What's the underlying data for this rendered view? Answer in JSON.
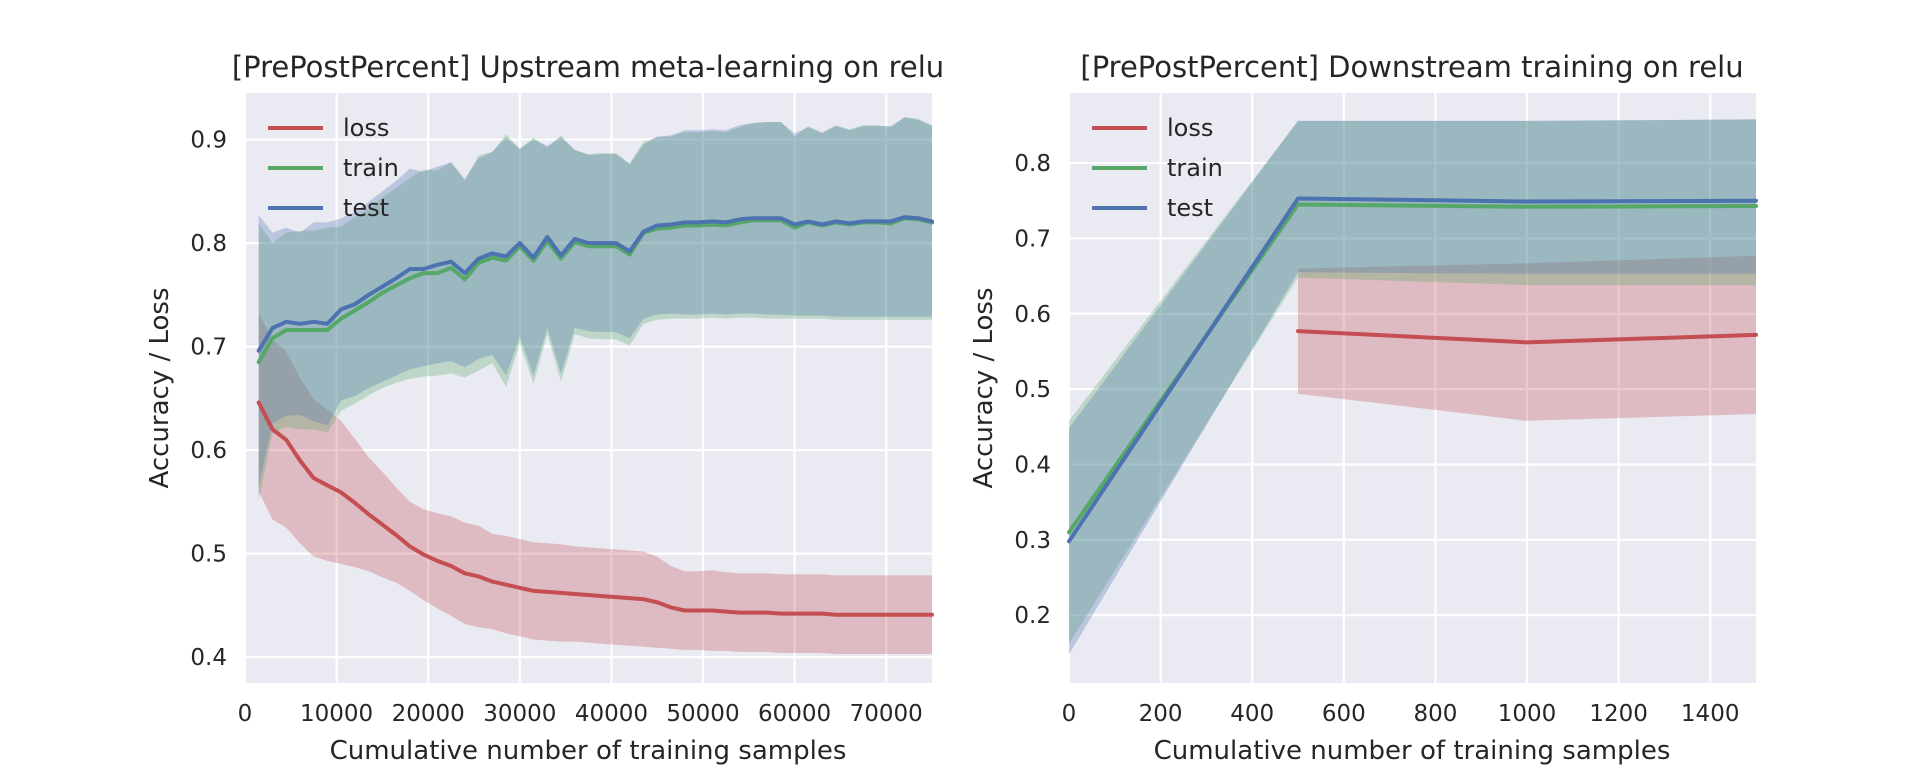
{
  "chart_data": [
    {
      "type": "line",
      "title": "[PrePostPercent] Upstream meta-learning on relu",
      "xlabel": "Cumulative number of training samples",
      "ylabel": "Accuracy / Loss",
      "xlim": [
        0,
        75000
      ],
      "ylim": [
        0.375,
        0.945
      ],
      "xticks": [
        0,
        10000,
        20000,
        30000,
        40000,
        50000,
        60000,
        70000
      ],
      "yticks": [
        0.4,
        0.5,
        0.6,
        0.7,
        0.8,
        0.9
      ],
      "grid": true,
      "legend": "top-left",
      "x": [
        1500,
        3000,
        4500,
        6000,
        7500,
        9000,
        10500,
        12000,
        13500,
        15000,
        16500,
        18000,
        19500,
        21000,
        22500,
        24000,
        25500,
        27000,
        28500,
        30000,
        31500,
        33000,
        34500,
        36000,
        37500,
        39000,
        40500,
        42000,
        43500,
        45000,
        46500,
        48000,
        49500,
        51000,
        52500,
        54000,
        55500,
        57000,
        58500,
        60000,
        61500,
        63000,
        64500,
        66000,
        67500,
        69000,
        70500,
        72000,
        73500,
        75000
      ],
      "series": [
        {
          "name": "loss",
          "color": "#c44e52",
          "values": [
            0.646,
            0.62,
            0.61,
            0.59,
            0.573,
            0.566,
            0.559,
            0.549,
            0.538,
            0.528,
            0.518,
            0.507,
            0.499,
            0.493,
            0.488,
            0.481,
            0.478,
            0.473,
            0.47,
            0.467,
            0.464,
            0.463,
            0.462,
            0.461,
            0.46,
            0.459,
            0.458,
            0.457,
            0.456,
            0.453,
            0.448,
            0.445,
            0.445,
            0.445,
            0.444,
            0.443,
            0.443,
            0.443,
            0.442,
            0.442,
            0.442,
            0.442,
            0.441,
            0.441,
            0.441,
            0.441,
            0.441,
            0.441,
            0.441,
            0.441
          ],
          "lower": [
            0.56,
            0.533,
            0.525,
            0.51,
            0.497,
            0.493,
            0.49,
            0.487,
            0.483,
            0.477,
            0.472,
            0.464,
            0.455,
            0.447,
            0.44,
            0.432,
            0.429,
            0.427,
            0.423,
            0.42,
            0.417,
            0.416,
            0.415,
            0.415,
            0.414,
            0.413,
            0.412,
            0.411,
            0.41,
            0.409,
            0.408,
            0.407,
            0.407,
            0.406,
            0.406,
            0.405,
            0.405,
            0.405,
            0.404,
            0.404,
            0.404,
            0.404,
            0.403,
            0.403,
            0.403,
            0.403,
            0.403,
            0.403,
            0.403,
            0.403
          ],
          "upper": [
            0.732,
            0.707,
            0.695,
            0.67,
            0.649,
            0.639,
            0.628,
            0.611,
            0.593,
            0.579,
            0.564,
            0.55,
            0.543,
            0.539,
            0.536,
            0.53,
            0.527,
            0.519,
            0.517,
            0.514,
            0.511,
            0.51,
            0.509,
            0.507,
            0.506,
            0.505,
            0.504,
            0.503,
            0.502,
            0.497,
            0.488,
            0.483,
            0.483,
            0.484,
            0.482,
            0.481,
            0.481,
            0.481,
            0.48,
            0.48,
            0.48,
            0.48,
            0.479,
            0.479,
            0.479,
            0.479,
            0.479,
            0.479,
            0.479,
            0.479
          ]
        },
        {
          "name": "train",
          "color": "#55a868",
          "values": [
            0.685,
            0.708,
            0.716,
            0.716,
            0.716,
            0.716,
            0.727,
            0.735,
            0.743,
            0.752,
            0.759,
            0.766,
            0.771,
            0.771,
            0.776,
            0.765,
            0.781,
            0.786,
            0.783,
            0.797,
            0.783,
            0.802,
            0.785,
            0.801,
            0.797,
            0.797,
            0.797,
            0.789,
            0.81,
            0.814,
            0.815,
            0.817,
            0.817,
            0.818,
            0.817,
            0.82,
            0.822,
            0.822,
            0.822,
            0.815,
            0.82,
            0.817,
            0.82,
            0.818,
            0.82,
            0.82,
            0.819,
            0.824,
            0.823,
            0.82
          ],
          "lower": [
            0.551,
            0.616,
            0.622,
            0.62,
            0.62,
            0.617,
            0.638,
            0.645,
            0.653,
            0.66,
            0.665,
            0.669,
            0.671,
            0.672,
            0.674,
            0.67,
            0.677,
            0.684,
            0.661,
            0.703,
            0.664,
            0.712,
            0.666,
            0.712,
            0.708,
            0.707,
            0.707,
            0.701,
            0.722,
            0.726,
            0.727,
            0.727,
            0.727,
            0.728,
            0.727,
            0.728,
            0.728,
            0.727,
            0.727,
            0.727,
            0.727,
            0.727,
            0.726,
            0.726,
            0.726,
            0.726,
            0.726,
            0.726,
            0.726,
            0.726
          ],
          "upper": [
            0.819,
            0.8,
            0.81,
            0.812,
            0.812,
            0.815,
            0.816,
            0.825,
            0.833,
            0.844,
            0.853,
            0.863,
            0.871,
            0.87,
            0.878,
            0.86,
            0.885,
            0.888,
            0.905,
            0.891,
            0.902,
            0.892,
            0.904,
            0.89,
            0.886,
            0.887,
            0.887,
            0.877,
            0.898,
            0.902,
            0.903,
            0.907,
            0.907,
            0.908,
            0.907,
            0.912,
            0.916,
            0.917,
            0.917,
            0.903,
            0.913,
            0.907,
            0.914,
            0.91,
            0.914,
            0.914,
            0.912,
            0.922,
            0.92,
            0.914
          ]
        },
        {
          "name": "test",
          "color": "#4c72b0",
          "values": [
            0.696,
            0.718,
            0.724,
            0.722,
            0.724,
            0.722,
            0.736,
            0.741,
            0.75,
            0.758,
            0.766,
            0.775,
            0.775,
            0.779,
            0.782,
            0.771,
            0.785,
            0.79,
            0.787,
            0.8,
            0.786,
            0.806,
            0.788,
            0.804,
            0.8,
            0.8,
            0.8,
            0.792,
            0.811,
            0.817,
            0.818,
            0.82,
            0.82,
            0.821,
            0.82,
            0.823,
            0.824,
            0.824,
            0.824,
            0.818,
            0.821,
            0.818,
            0.821,
            0.819,
            0.821,
            0.821,
            0.821,
            0.825,
            0.824,
            0.821
          ],
          "lower": [
            0.565,
            0.626,
            0.633,
            0.634,
            0.628,
            0.624,
            0.648,
            0.652,
            0.66,
            0.666,
            0.672,
            0.678,
            0.681,
            0.684,
            0.686,
            0.68,
            0.688,
            0.692,
            0.672,
            0.709,
            0.672,
            0.718,
            0.674,
            0.718,
            0.715,
            0.714,
            0.714,
            0.708,
            0.727,
            0.731,
            0.732,
            0.731,
            0.731,
            0.732,
            0.731,
            0.732,
            0.732,
            0.731,
            0.731,
            0.73,
            0.73,
            0.73,
            0.729,
            0.729,
            0.729,
            0.729,
            0.729,
            0.729,
            0.729,
            0.729
          ],
          "upper": [
            0.827,
            0.81,
            0.815,
            0.81,
            0.82,
            0.82,
            0.824,
            0.83,
            0.84,
            0.85,
            0.86,
            0.872,
            0.869,
            0.874,
            0.878,
            0.862,
            0.882,
            0.888,
            0.902,
            0.891,
            0.9,
            0.894,
            0.902,
            0.89,
            0.885,
            0.886,
            0.886,
            0.876,
            0.895,
            0.903,
            0.904,
            0.909,
            0.909,
            0.91,
            0.909,
            0.914,
            0.916,
            0.917,
            0.917,
            0.906,
            0.912,
            0.906,
            0.913,
            0.909,
            0.913,
            0.913,
            0.913,
            0.921,
            0.919,
            0.913
          ]
        }
      ]
    },
    {
      "type": "line",
      "title": "[PrePostPercent] Downstream training on relu",
      "xlabel": "Cumulative number of training samples",
      "ylabel": "Accuracy / Loss",
      "xlim": [
        0,
        1500
      ],
      "ylim": [
        0.11,
        0.893
      ],
      "xticks": [
        0,
        200,
        400,
        600,
        800,
        1000,
        1200,
        1400
      ],
      "yticks": [
        0.2,
        0.3,
        0.4,
        0.5,
        0.6,
        0.7,
        0.8
      ],
      "grid": true,
      "legend": "top-left",
      "series": [
        {
          "name": "loss",
          "color": "#c44e52",
          "x": [
            500,
            1000,
            1500
          ],
          "values": [
            0.577,
            0.562,
            0.572
          ],
          "lower": [
            0.494,
            0.458,
            0.467
          ],
          "upper": [
            0.66,
            0.667,
            0.677
          ]
        },
        {
          "name": "train",
          "color": "#55a868",
          "x": [
            0,
            500,
            1000,
            1500
          ],
          "values": [
            0.31,
            0.745,
            0.742,
            0.743
          ],
          "lower": [
            0.162,
            0.648,
            0.638,
            0.638
          ],
          "upper": [
            0.458,
            0.856,
            0.856,
            0.858
          ]
        },
        {
          "name": "test",
          "color": "#4c72b0",
          "x": [
            0,
            500,
            1000,
            1500
          ],
          "values": [
            0.298,
            0.753,
            0.749,
            0.75
          ],
          "lower": [
            0.148,
            0.655,
            0.653,
            0.653
          ],
          "upper": [
            0.448,
            0.856,
            0.856,
            0.858
          ]
        }
      ]
    }
  ]
}
